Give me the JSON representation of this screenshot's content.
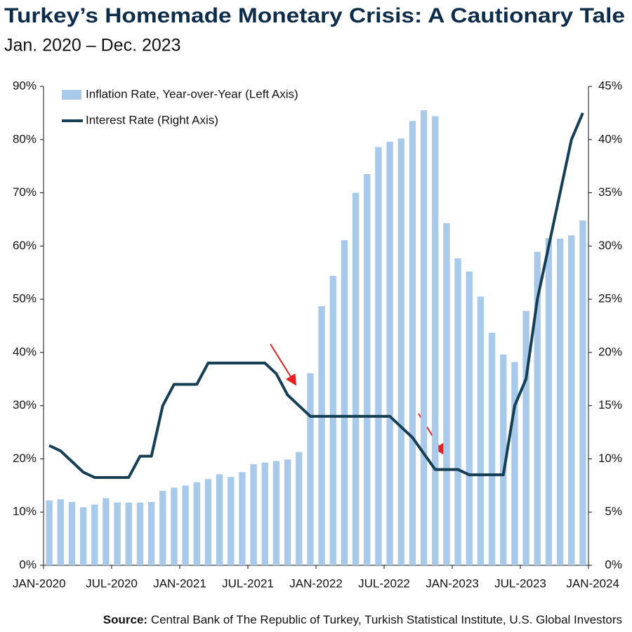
{
  "chart_data": {
    "type": "bar_line",
    "title": "Turkey’s Homemade Monetary Crisis: A Cautionary Tale",
    "subtitle": "Jan. 2020 – Dec. 2023",
    "source_label": "Source:",
    "source": "Central Bank of The Republic of Turkey, Turkish Statistical Institute, U.S. Global Investors",
    "xlim": [
      0,
      48
    ],
    "xticks": [
      {
        "value": 0,
        "label": "JAN-2020"
      },
      {
        "value": 6,
        "label": "JUL-2020"
      },
      {
        "value": 12,
        "label": "JAN-2021"
      },
      {
        "value": 18,
        "label": "JUL-2021"
      },
      {
        "value": 24,
        "label": "JAN-2022"
      },
      {
        "value": 30,
        "label": "JUL-2022"
      },
      {
        "value": 36,
        "label": "JAN-2023"
      },
      {
        "value": 42,
        "label": "JUL-2023"
      },
      {
        "value": 48,
        "label": "JAN-2024"
      }
    ],
    "ylim": [
      0,
      90
    ],
    "yticks": [
      {
        "value": 0,
        "label": "0%"
      },
      {
        "value": 10,
        "label": "10%"
      },
      {
        "value": 20,
        "label": "20%"
      },
      {
        "value": 30,
        "label": "30%"
      },
      {
        "value": 40,
        "label": "40%"
      },
      {
        "value": 50,
        "label": "50%"
      },
      {
        "value": 60,
        "label": "60%"
      },
      {
        "value": 70,
        "label": "70%"
      },
      {
        "value": 80,
        "label": "80%"
      },
      {
        "value": 90,
        "label": "90%"
      }
    ],
    "y2lim": [
      0,
      45
    ],
    "y2ticks": [
      {
        "value": 0,
        "label": "0%"
      },
      {
        "value": 5,
        "label": "5%"
      },
      {
        "value": 10,
        "label": "10%"
      },
      {
        "value": 15,
        "label": "15%"
      },
      {
        "value": 20,
        "label": "20%"
      },
      {
        "value": 25,
        "label": "25%"
      },
      {
        "value": 30,
        "label": "30%"
      },
      {
        "value": 35,
        "label": "35%"
      },
      {
        "value": 40,
        "label": "40%"
      },
      {
        "value": 45,
        "label": "45%"
      }
    ],
    "legend": "top-left",
    "series": [
      {
        "name": "Inflation Rate, Year-over-Year (Left Axis)",
        "kind": "bar",
        "color": "#a9c9ea",
        "values": [
          12.2,
          12.4,
          11.9,
          10.9,
          11.4,
          12.6,
          11.8,
          11.8,
          11.8,
          11.9,
          14.0,
          14.6,
          15.0,
          15.6,
          16.2,
          17.1,
          16.6,
          17.5,
          19.0,
          19.3,
          19.6,
          19.9,
          21.3,
          36.1,
          48.7,
          54.4,
          61.1,
          70.0,
          73.5,
          78.6,
          79.6,
          80.2,
          83.5,
          85.5,
          84.4,
          64.3,
          57.7,
          55.2,
          50.5,
          43.7,
          39.6,
          38.2,
          47.8,
          58.9,
          61.5,
          61.4,
          62.0,
          64.8
        ]
      },
      {
        "name": "Interest Rate (Right Axis)",
        "kind": "line",
        "axis": "y2",
        "color": "#163f56",
        "values": [
          11.25,
          10.75,
          9.75,
          8.75,
          8.25,
          8.25,
          8.25,
          8.25,
          10.25,
          10.25,
          15,
          17,
          17,
          17,
          19,
          19,
          19,
          19,
          19,
          19,
          18,
          16,
          15,
          14,
          14,
          14,
          14,
          14,
          14,
          14,
          14,
          13,
          12,
          10.5,
          9,
          9,
          9,
          8.5,
          8.5,
          8.5,
          8.5,
          15,
          17.5,
          25,
          30,
          35,
          40,
          42.5
        ]
      }
    ]
  }
}
